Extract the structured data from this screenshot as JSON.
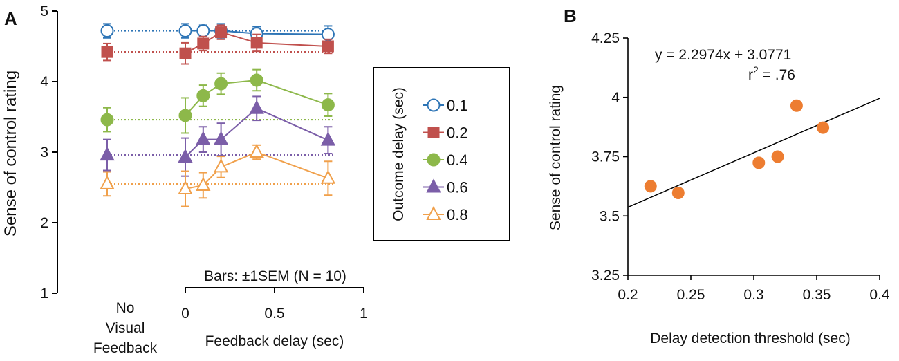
{
  "panel_labels": {
    "a": "A",
    "b": "B"
  },
  "colors": {
    "s01": "#2e75b6",
    "s02": "#c0504d",
    "s04": "#8db84a",
    "s06": "#7b5ea8",
    "s08": "#f0a04b",
    "scatter": "#ed7d31",
    "axis": "#000000"
  },
  "chart_data": [
    {
      "type": "line",
      "title": "",
      "xlabel": "Feedback delay (sec)",
      "ylabel": "Sense of control rating",
      "no_feedback_label": [
        "No",
        "Visual",
        "Feedback"
      ],
      "x": [
        0,
        0.1,
        0.2,
        0.4,
        0.8
      ],
      "xlim": [
        0,
        1
      ],
      "xticks": [
        "0",
        "0.5",
        "1"
      ],
      "ylim": [
        1,
        5
      ],
      "yticks": [
        "1",
        "2",
        "3",
        "4",
        "5"
      ],
      "legend_title": "Outcome delay (sec)",
      "note": "Bars: ±1SEM (N = 10)",
      "series": [
        {
          "name": "0.1",
          "marker": "circle-open",
          "no_feedback": 4.72,
          "no_feedback_err": 0.1,
          "values": [
            4.72,
            4.72,
            4.72,
            4.68,
            4.67
          ],
          "errors": [
            0.1,
            0.08,
            0.1,
            0.1,
            0.12
          ]
        },
        {
          "name": "0.2",
          "marker": "square",
          "no_feedback": 4.42,
          "no_feedback_err": 0.12,
          "values": [
            4.4,
            4.54,
            4.7,
            4.55,
            4.5
          ],
          "errors": [
            0.15,
            0.1,
            0.1,
            0.12,
            0.1
          ]
        },
        {
          "name": "0.4",
          "marker": "circle",
          "no_feedback": 3.46,
          "no_feedback_err": 0.17,
          "values": [
            3.52,
            3.8,
            3.97,
            4.02,
            3.67
          ],
          "errors": [
            0.25,
            0.15,
            0.15,
            0.15,
            0.16
          ]
        },
        {
          "name": "0.6",
          "marker": "triangle",
          "no_feedback": 2.96,
          "no_feedback_err": 0.22,
          "values": [
            2.93,
            3.18,
            3.18,
            3.62,
            3.17
          ],
          "errors": [
            0.27,
            0.18,
            0.23,
            0.17,
            0.19
          ]
        },
        {
          "name": "0.8",
          "marker": "triangle-open",
          "no_feedback": 2.55,
          "no_feedback_err": 0.17,
          "values": [
            2.48,
            2.53,
            2.79,
            3.0,
            2.63
          ],
          "errors": [
            0.25,
            0.18,
            0.15,
            0.1,
            0.24
          ]
        }
      ]
    },
    {
      "type": "scatter",
      "title": "",
      "xlabel": "Delay detection threshold (sec)",
      "ylabel": "Sense of control rating",
      "xlim": [
        0.2,
        0.4
      ],
      "ylim": [
        3.25,
        4.25
      ],
      "xticks": [
        "0.2",
        "0.25",
        "0.3",
        "0.35",
        "0.4"
      ],
      "yticks": [
        "3.25",
        "3.5",
        "3.75",
        "4",
        "4.25"
      ],
      "x": [
        0.218,
        0.24,
        0.304,
        0.319,
        0.334,
        0.355
      ],
      "y": [
        3.625,
        3.597,
        3.724,
        3.75,
        3.965,
        3.872
      ],
      "fit": {
        "slope": 2.2974,
        "intercept": 3.0771
      },
      "equation": "y = 2.2974x + 3.0771",
      "r2_prefix": "r",
      "r2_sup": "2",
      "r2_value": " = .76"
    }
  ]
}
